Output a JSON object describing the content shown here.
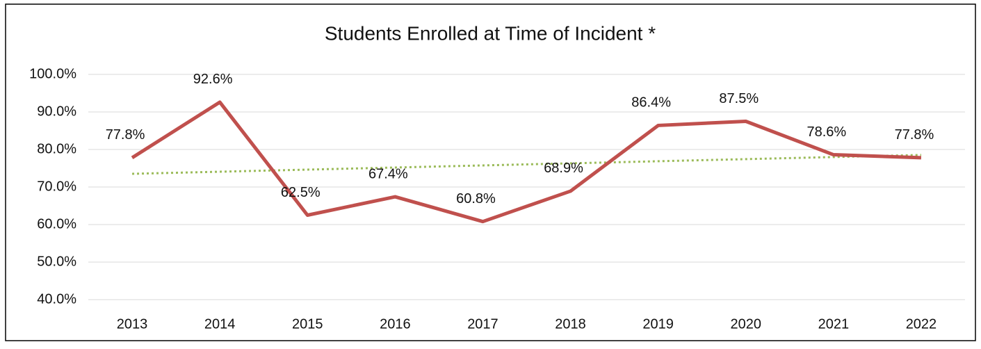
{
  "chart_data": {
    "type": "line",
    "title": "Students Enrolled at Time of Incident *",
    "categories": [
      "2013",
      "2014",
      "2015",
      "2016",
      "2017",
      "2018",
      "2019",
      "2020",
      "2021",
      "2022"
    ],
    "series": [
      {
        "color": "#c0504d",
        "values": [
          77.8,
          92.6,
          62.5,
          67.4,
          60.8,
          68.9,
          86.4,
          87.5,
          78.6,
          77.8
        ],
        "value_labels": [
          "77.8%",
          "92.6%",
          "62.5%",
          "67.4%",
          "60.8%",
          "68.9%",
          "86.4%",
          "87.5%",
          "78.6%",
          "77.8%"
        ]
      }
    ],
    "trendline": "linear",
    "trendline_color": "#9bbb59",
    "ylim": [
      40,
      100
    ],
    "yticks": [
      {
        "value": 40,
        "label": "40.0%"
      },
      {
        "value": 50,
        "label": "50.0%"
      },
      {
        "value": 60,
        "label": "60.0%"
      },
      {
        "value": 70,
        "label": "70.0%"
      },
      {
        "value": 80,
        "label": "80.0%"
      },
      {
        "value": 90,
        "label": "90.0%"
      },
      {
        "value": 100,
        "label": "100.0%"
      }
    ],
    "grid": true
  }
}
